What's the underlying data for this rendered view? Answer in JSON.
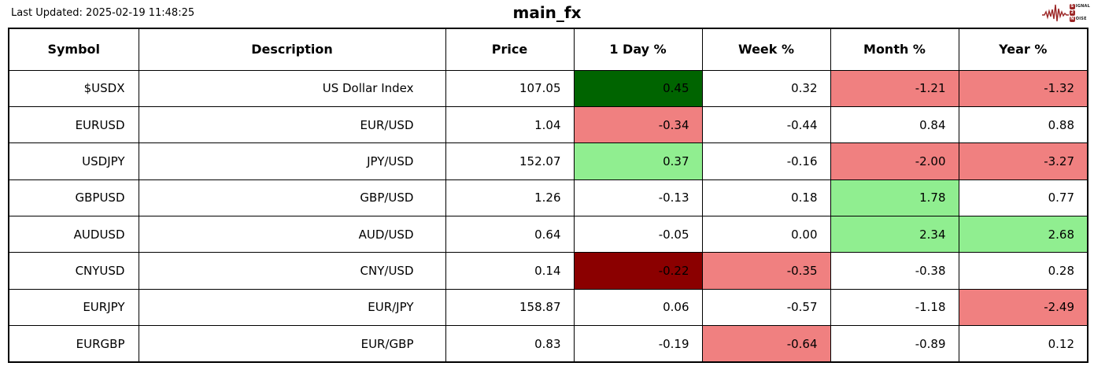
{
  "header": {
    "last_updated": "Last Updated: 2025-02-19 11:48:25",
    "title": "main_fx",
    "logo": {
      "line1_initial": "S",
      "line1_rest": "IGNAL",
      "line2_initial": "2",
      "line3_initial": "N",
      "line3_rest": "OISE"
    }
  },
  "colors": {
    "up_strong": "#006400",
    "up": "#90EE90",
    "down": "#F08080",
    "down_strong": "#8B0000",
    "logo_red": "#9c2626",
    "cell_text": "#000000"
  },
  "table": {
    "columns": [
      "Symbol",
      "Description",
      "Price",
      "1 Day %",
      "Week %",
      "Month %",
      "Year %"
    ],
    "rows": [
      {
        "symbol": "$USDX",
        "description": "US Dollar Index",
        "price": "107.05",
        "changes": [
          {
            "v": "0.45",
            "bg": "up_strong"
          },
          {
            "v": "0.32",
            "bg": null
          },
          {
            "v": "-1.21",
            "bg": "down"
          },
          {
            "v": "-1.32",
            "bg": "down"
          }
        ]
      },
      {
        "symbol": "EURUSD",
        "description": "EUR/USD",
        "price": "1.04",
        "changes": [
          {
            "v": "-0.34",
            "bg": "down"
          },
          {
            "v": "-0.44",
            "bg": null
          },
          {
            "v": "0.84",
            "bg": null
          },
          {
            "v": "0.88",
            "bg": null
          }
        ]
      },
      {
        "symbol": "USDJPY",
        "description": "JPY/USD",
        "price": "152.07",
        "changes": [
          {
            "v": "0.37",
            "bg": "up"
          },
          {
            "v": "-0.16",
            "bg": null
          },
          {
            "v": "-2.00",
            "bg": "down"
          },
          {
            "v": "-3.27",
            "bg": "down"
          }
        ]
      },
      {
        "symbol": "GBPUSD",
        "description": "GBP/USD",
        "price": "1.26",
        "changes": [
          {
            "v": "-0.13",
            "bg": null
          },
          {
            "v": "0.18",
            "bg": null
          },
          {
            "v": "1.78",
            "bg": "up"
          },
          {
            "v": "0.77",
            "bg": null
          }
        ]
      },
      {
        "symbol": "AUDUSD",
        "description": "AUD/USD",
        "price": "0.64",
        "changes": [
          {
            "v": "-0.05",
            "bg": null
          },
          {
            "v": "0.00",
            "bg": null
          },
          {
            "v": "2.34",
            "bg": "up"
          },
          {
            "v": "2.68",
            "bg": "up"
          }
        ]
      },
      {
        "symbol": "CNYUSD",
        "description": "CNY/USD",
        "price": "0.14",
        "changes": [
          {
            "v": "-0.22",
            "bg": "down_strong"
          },
          {
            "v": "-0.35",
            "bg": "down"
          },
          {
            "v": "-0.38",
            "bg": null
          },
          {
            "v": "0.28",
            "bg": null
          }
        ]
      },
      {
        "symbol": "EURJPY",
        "description": "EUR/JPY",
        "price": "158.87",
        "changes": [
          {
            "v": "0.06",
            "bg": null
          },
          {
            "v": "-0.57",
            "bg": null
          },
          {
            "v": "-1.18",
            "bg": null
          },
          {
            "v": "-2.49",
            "bg": "down"
          }
        ]
      },
      {
        "symbol": "EURGBP",
        "description": "EUR/GBP",
        "price": "0.83",
        "changes": [
          {
            "v": "-0.19",
            "bg": null
          },
          {
            "v": "-0.64",
            "bg": "down"
          },
          {
            "v": "-0.89",
            "bg": null
          },
          {
            "v": "0.12",
            "bg": null
          }
        ]
      }
    ]
  },
  "chart_data": {
    "type": "table",
    "title": "main_fx",
    "columns": [
      "Symbol",
      "Description",
      "Price",
      "1 Day %",
      "Week %",
      "Month %",
      "Year %"
    ],
    "rows": [
      [
        "$USDX",
        "US Dollar Index",
        107.05,
        0.45,
        0.32,
        -1.21,
        -1.32
      ],
      [
        "EURUSD",
        "EUR/USD",
        1.04,
        -0.34,
        -0.44,
        0.84,
        0.88
      ],
      [
        "USDJPY",
        "JPY/USD",
        152.07,
        0.37,
        -0.16,
        -2.0,
        -3.27
      ],
      [
        "GBPUSD",
        "GBP/USD",
        1.26,
        -0.13,
        0.18,
        1.78,
        0.77
      ],
      [
        "AUDUSD",
        "AUD/USD",
        0.64,
        -0.05,
        0.0,
        2.34,
        2.68
      ],
      [
        "CNYUSD",
        "CNY/USD",
        0.14,
        -0.22,
        -0.35,
        -0.38,
        0.28
      ],
      [
        "EURJPY",
        "EUR/JPY",
        158.87,
        0.06,
        -0.57,
        -1.18,
        -2.49
      ],
      [
        "EURGBP",
        "EUR/GBP",
        0.83,
        -0.19,
        -0.64,
        -0.89,
        0.12
      ]
    ],
    "cell_highlights": {
      "strong_positive_color": "#006400",
      "positive_color": "#90EE90",
      "negative_color": "#F08080",
      "strong_negative_color": "#8B0000"
    }
  }
}
